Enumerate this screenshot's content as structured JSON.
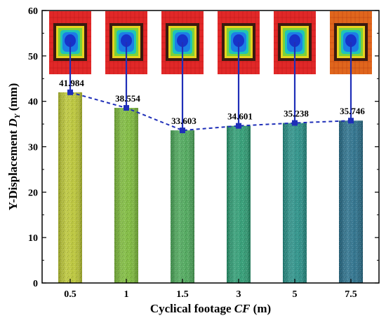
{
  "chart_data": {
    "type": "bar",
    "categories": [
      "0.5",
      "1",
      "1.5",
      "3",
      "5",
      "7.5"
    ],
    "values": [
      41.984,
      38.554,
      33.603,
      34.601,
      35.238,
      35.746
    ],
    "data_labels": [
      "41.984",
      "38.554",
      "33.603",
      "34.601",
      "35.238",
      "35.746"
    ],
    "xlabel": {
      "text": "Cyclical footage ",
      "italic": "CF",
      "suffix": " (m)"
    },
    "ylabel": {
      "text": "Y-Displacement ",
      "italic": "D",
      "sub": "Y",
      "suffix": " (mm)"
    },
    "ylim": [
      0,
      60
    ],
    "yticks": [
      "0",
      "10",
      "20",
      "30",
      "40",
      "50",
      "60"
    ],
    "grid": false,
    "line_overlay": {
      "style": "dashed",
      "marker": "square",
      "color": "#1f2fb8"
    },
    "bar_colors": [
      "#b9c437",
      "#7cb83c",
      "#4da65a",
      "#2f9b73",
      "#2a8f86",
      "#2b6f8a"
    ],
    "inset_images": 6
  }
}
